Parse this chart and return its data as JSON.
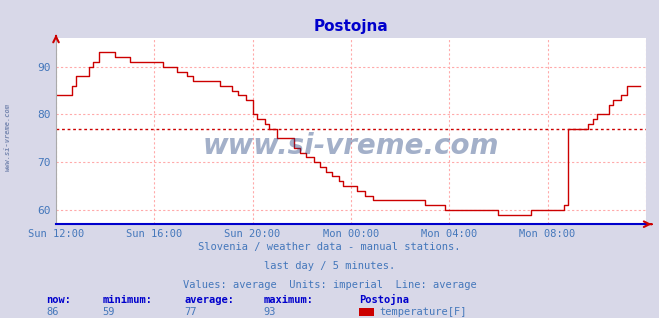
{
  "title": "Postojna",
  "title_color": "#0000cc",
  "bg_color": "#d8d8e8",
  "plot_bg_color": "#ffffff",
  "grid_color": "#ffaaaa",
  "axis_color": "#0000aa",
  "line_color": "#cc0000",
  "avg_line_color": "#cc0000",
  "avg_value": 77,
  "ylim": [
    57,
    96
  ],
  "yticks": [
    60,
    70,
    80,
    90
  ],
  "xlabel_color": "#4477bb",
  "ylabel_color": "#4477bb",
  "watermark_color": "#1a3a7a",
  "watermark_text": "www.si-vreme.com",
  "sidebar_text": "www.si-vreme.com",
  "footer_line1": "Slovenia / weather data - manual stations.",
  "footer_line2": "last day / 5 minutes.",
  "footer_line3": "Values: average  Units: imperial  Line: average",
  "footer_color": "#4477bb",
  "stats_label_color": "#0000cc",
  "stats_value_color": "#4477bb",
  "now": 86,
  "minimum": 59,
  "average": 77,
  "maximum": 93,
  "station": "Postojna",
  "param": "temperature[F]",
  "legend_color": "#cc0000",
  "xtick_labels": [
    "Sun 12:00",
    "Sun 16:00",
    "Sun 20:00",
    "Mon 00:00",
    "Mon 04:00",
    "Mon 08:00",
    ""
  ],
  "temperature_data": [
    84,
    84,
    84,
    84,
    84,
    84,
    84,
    84,
    86,
    86,
    88,
    88,
    88,
    88,
    88,
    88,
    90,
    90,
    91,
    91,
    91,
    93,
    93,
    93,
    93,
    93,
    93,
    93,
    93,
    92,
    92,
    92,
    92,
    92,
    92,
    92,
    91,
    91,
    91,
    91,
    91,
    91,
    91,
    91,
    91,
    91,
    91,
    91,
    91,
    91,
    91,
    91,
    90,
    90,
    90,
    90,
    90,
    90,
    90,
    89,
    89,
    89,
    89,
    89,
    88,
    88,
    88,
    87,
    87,
    87,
    87,
    87,
    87,
    87,
    87,
    87,
    87,
    87,
    87,
    87,
    86,
    86,
    86,
    86,
    86,
    86,
    85,
    85,
    85,
    84,
    84,
    84,
    84,
    83,
    83,
    83,
    80,
    80,
    79,
    79,
    79,
    79,
    78,
    78,
    77,
    77,
    77,
    77,
    75,
    75,
    75,
    75,
    75,
    75,
    75,
    75,
    73,
    73,
    73,
    72,
    72,
    72,
    71,
    71,
    71,
    71,
    70,
    70,
    70,
    69,
    69,
    69,
    68,
    68,
    68,
    67,
    67,
    67,
    66,
    66,
    65,
    65,
    65,
    65,
    65,
    65,
    65,
    64,
    64,
    64,
    64,
    63,
    63,
    63,
    63,
    62,
    62,
    62,
    62,
    62,
    62,
    62,
    62,
    62,
    62,
    62,
    62,
    62,
    62,
    62,
    62,
    62,
    62,
    62,
    62,
    62,
    62,
    62,
    62,
    62,
    61,
    61,
    61,
    61,
    61,
    61,
    61,
    61,
    61,
    61,
    60,
    60,
    60,
    60,
    60,
    60,
    60,
    60,
    60,
    60,
    60,
    60,
    60,
    60,
    60,
    60,
    60,
    60,
    60,
    60,
    60,
    60,
    60,
    60,
    60,
    60,
    59,
    59,
    59,
    59,
    59,
    59,
    59,
    59,
    59,
    59,
    59,
    59,
    59,
    59,
    59,
    59,
    60,
    60,
    60,
    60,
    60,
    60,
    60,
    60,
    60,
    60,
    60,
    60,
    60,
    60,
    60,
    60,
    61,
    61,
    77,
    77,
    77,
    77,
    77,
    77,
    77,
    77,
    77,
    77,
    78,
    78,
    79,
    79,
    80,
    80,
    80,
    80,
    80,
    80,
    82,
    82,
    83,
    83,
    83,
    83,
    84,
    84,
    84,
    86,
    86,
    86,
    86,
    86,
    86,
    86
  ]
}
